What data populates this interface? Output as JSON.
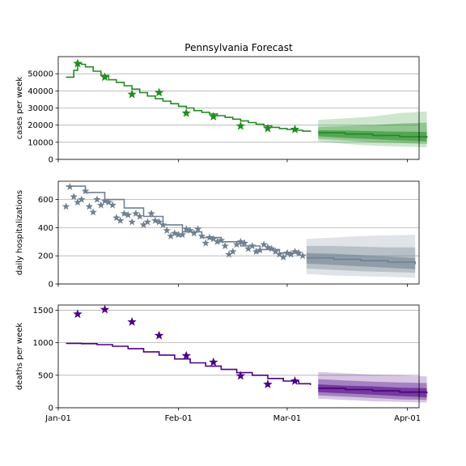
{
  "chart_data": [
    {
      "type": "line",
      "title": "Pennsylvania Forecast",
      "ylabel": "cases per week",
      "xlim": [
        "2021-01-01",
        "2021-04-04"
      ],
      "ylim": [
        0,
        60000
      ],
      "yticks": [
        0,
        10000,
        20000,
        30000,
        40000,
        50000
      ],
      "ytick_labels": [
        "0",
        "10000",
        "20000",
        "30000",
        "40000",
        "50000"
      ],
      "xticks": [
        "2021-01-01",
        "2021-02-01",
        "2021-03-01",
        "2021-04-01"
      ],
      "xtick_labels": [
        "",
        "",
        "",
        ""
      ],
      "grid": "horizontal",
      "color": "#228b22",
      "model": {
        "x": [
          "2021-01-03",
          "2021-01-05",
          "2021-01-06",
          "2021-01-07",
          "2021-01-08",
          "2021-01-10",
          "2021-01-12",
          "2021-01-14",
          "2021-01-16",
          "2021-01-18",
          "2021-01-20",
          "2021-01-22",
          "2021-01-24",
          "2021-01-26",
          "2021-01-28",
          "2021-01-30",
          "2021-02-01",
          "2021-02-03",
          "2021-02-05",
          "2021-02-07",
          "2021-02-09",
          "2021-02-11",
          "2021-02-13",
          "2021-02-15",
          "2021-02-17",
          "2021-02-19",
          "2021-02-21",
          "2021-02-23",
          "2021-02-25",
          "2021-02-27",
          "2021-03-01",
          "2021-03-03",
          "2021-03-05",
          "2021-03-07"
        ],
        "values": [
          48000,
          52000,
          56000,
          55500,
          54000,
          51500,
          49000,
          46500,
          45000,
          43000,
          41000,
          39000,
          37000,
          35500,
          34000,
          32500,
          31000,
          30000,
          28500,
          27500,
          26500,
          25500,
          24500,
          23500,
          22500,
          21500,
          20500,
          19500,
          18700,
          18000,
          17500,
          17000,
          16500,
          16000
        ]
      },
      "observed": {
        "x": [
          "2021-01-06",
          "2021-01-13",
          "2021-01-20",
          "2021-01-27",
          "2021-02-03",
          "2021-02-10",
          "2021-02-17",
          "2021-02-24",
          "2021-03-03"
        ],
        "values": [
          56000,
          48000,
          38000,
          39000,
          27000,
          25000,
          19500,
          18000,
          17500
        ]
      },
      "forecast": {
        "x": [
          "2021-03-09",
          "2021-03-16",
          "2021-03-23",
          "2021-03-30",
          "2021-04-06"
        ],
        "median": [
          15500,
          14800,
          14000,
          13200,
          12500
        ],
        "band_50": {
          "low": [
            13500,
            12500,
            11800,
            11000,
            10500
          ],
          "high": [
            17000,
            16800,
            16500,
            16200,
            16000
          ]
        },
        "band_80": {
          "low": [
            12000,
            11000,
            10000,
            9500,
            9000
          ],
          "high": [
            19000,
            19500,
            20000,
            21000,
            21500
          ]
        },
        "band_95": {
          "low": [
            10500,
            9000,
            8000,
            7500,
            7000
          ],
          "high": [
            23000,
            24000,
            25000,
            27000,
            28000
          ]
        }
      }
    },
    {
      "type": "line",
      "title": "",
      "ylabel": "daily hospitalizations",
      "xlim": [
        "2021-01-01",
        "2021-04-04"
      ],
      "ylim": [
        0,
        730
      ],
      "yticks": [
        0,
        200,
        400,
        600
      ],
      "ytick_labels": [
        "0",
        "200",
        "400",
        "600"
      ],
      "xticks": [
        "2021-01-01",
        "2021-02-01",
        "2021-03-01",
        "2021-04-01"
      ],
      "xtick_labels": [
        "",
        "",
        "",
        ""
      ],
      "grid": "horizontal",
      "color": "#708090",
      "model": {
        "x": [
          "2021-01-03",
          "2021-01-08",
          "2021-01-13",
          "2021-01-18",
          "2021-01-23",
          "2021-01-28",
          "2021-02-02",
          "2021-02-07",
          "2021-02-12",
          "2021-02-17",
          "2021-02-22",
          "2021-02-27",
          "2021-03-04"
        ],
        "values": [
          695,
          650,
          600,
          540,
          480,
          420,
          370,
          330,
          300,
          270,
          245,
          220,
          200
        ]
      },
      "observed": {
        "x": [
          "2021-01-03",
          "2021-01-04",
          "2021-01-05",
          "2021-01-06",
          "2021-01-07",
          "2021-01-08",
          "2021-01-09",
          "2021-01-10",
          "2021-01-11",
          "2021-01-12",
          "2021-01-13",
          "2021-01-14",
          "2021-01-15",
          "2021-01-16",
          "2021-01-17",
          "2021-01-18",
          "2021-01-19",
          "2021-01-20",
          "2021-01-21",
          "2021-01-22",
          "2021-01-23",
          "2021-01-24",
          "2021-01-25",
          "2021-01-26",
          "2021-01-27",
          "2021-01-28",
          "2021-01-29",
          "2021-01-30",
          "2021-01-31",
          "2021-02-01",
          "2021-02-02",
          "2021-02-03",
          "2021-02-04",
          "2021-02-05",
          "2021-02-06",
          "2021-02-07",
          "2021-02-08",
          "2021-02-09",
          "2021-02-10",
          "2021-02-11",
          "2021-02-12",
          "2021-02-13",
          "2021-02-14",
          "2021-02-15",
          "2021-02-16",
          "2021-02-17",
          "2021-02-18",
          "2021-02-19",
          "2021-02-20",
          "2021-02-21",
          "2021-02-22",
          "2021-02-23",
          "2021-02-24",
          "2021-02-25",
          "2021-02-26",
          "2021-02-27",
          "2021-02-28",
          "2021-03-01",
          "2021-03-02",
          "2021-03-03",
          "2021-03-04",
          "2021-03-05"
        ],
        "values": [
          550,
          690,
          620,
          580,
          600,
          660,
          550,
          510,
          600,
          560,
          590,
          580,
          560,
          470,
          450,
          500,
          490,
          440,
          500,
          480,
          420,
          440,
          500,
          450,
          440,
          420,
          380,
          340,
          360,
          350,
          350,
          390,
          380,
          360,
          390,
          340,
          290,
          330,
          320,
          300,
          310,
          270,
          210,
          230,
          280,
          300,
          290,
          250,
          270,
          230,
          240,
          280,
          260,
          250,
          230,
          210,
          190,
          220,
          210,
          230,
          220,
          200
        ]
      },
      "forecast": {
        "x": [
          "2021-03-06",
          "2021-03-13",
          "2021-03-20",
          "2021-03-27",
          "2021-04-03"
        ],
        "median": [
          185,
          175,
          165,
          155,
          140
        ],
        "band_50": {
          "low": [
            145,
            135,
            125,
            115,
            105
          ],
          "high": [
            220,
            215,
            205,
            195,
            185
          ]
        },
        "band_80": {
          "low": [
            110,
            100,
            90,
            85,
            80
          ],
          "high": [
            270,
            270,
            265,
            260,
            260
          ]
        },
        "band_95": {
          "low": [
            70,
            60,
            55,
            50,
            45
          ],
          "high": [
            320,
            330,
            340,
            345,
            350
          ]
        }
      }
    },
    {
      "type": "line",
      "title": "",
      "ylabel": "deaths per week",
      "xlim": [
        "2021-01-01",
        "2021-04-04"
      ],
      "ylim": [
        0,
        1580
      ],
      "yticks": [
        0,
        500,
        1000,
        1500
      ],
      "ytick_labels": [
        "0",
        "500",
        "1000",
        "1500"
      ],
      "xticks": [
        "2021-01-01",
        "2021-02-01",
        "2021-03-01",
        "2021-04-01"
      ],
      "xtick_labels": [
        "Jan-01",
        "Feb-01",
        "Mar-01",
        "Apr-01"
      ],
      "grid": "horizontal",
      "color": "#4b0082",
      "model": {
        "x": [
          "2021-01-03",
          "2021-01-07",
          "2021-01-11",
          "2021-01-15",
          "2021-01-19",
          "2021-01-23",
          "2021-01-27",
          "2021-01-31",
          "2021-02-04",
          "2021-02-08",
          "2021-02-12",
          "2021-02-16",
          "2021-02-20",
          "2021-02-24",
          "2021-02-28",
          "2021-03-04",
          "2021-03-07"
        ],
        "values": [
          990,
          985,
          970,
          945,
          910,
          860,
          810,
          750,
          690,
          640,
          590,
          540,
          500,
          450,
          410,
          370,
          350
        ]
      },
      "observed": {
        "x": [
          "2021-01-06",
          "2021-01-13",
          "2021-01-20",
          "2021-01-27",
          "2021-02-03",
          "2021-02-10",
          "2021-02-17",
          "2021-02-24",
          "2021-03-03"
        ],
        "values": [
          1440,
          1510,
          1320,
          1110,
          800,
          700,
          490,
          360,
          410
        ]
      },
      "forecast": {
        "x": [
          "2021-03-09",
          "2021-03-16",
          "2021-03-23",
          "2021-03-30",
          "2021-04-06"
        ],
        "median": [
          300,
          280,
          260,
          240,
          220
        ],
        "band_50": {
          "low": [
            240,
            220,
            200,
            180,
            160
          ],
          "high": [
            360,
            340,
            330,
            310,
            300
          ]
        },
        "band_80": {
          "low": [
            190,
            170,
            150,
            130,
            120
          ],
          "high": [
            440,
            420,
            400,
            390,
            380
          ]
        },
        "band_95": {
          "low": [
            140,
            120,
            100,
            90,
            80
          ],
          "high": [
            550,
            530,
            510,
            500,
            480
          ]
        }
      }
    }
  ]
}
